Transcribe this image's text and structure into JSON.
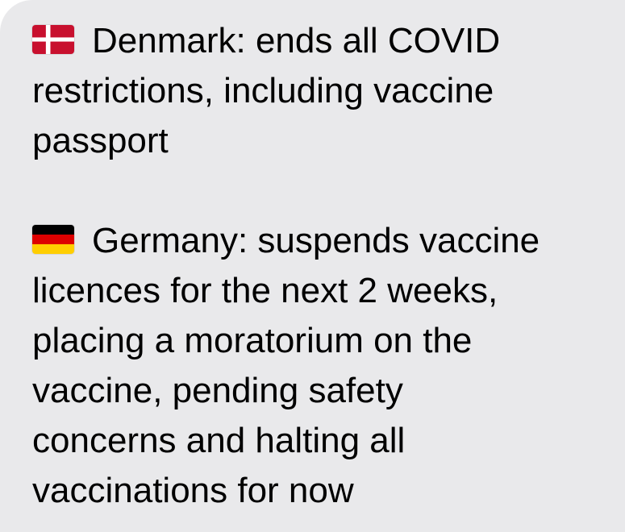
{
  "message": {
    "paragraphs": [
      {
        "flag_icon": "flag-denmark-icon",
        "text": "Denmark: ends all COVID\nrestrictions, including vaccine\npassport"
      },
      {
        "flag_icon": "flag-germany-icon",
        "text": "Germany: suspends vaccine\nlicences for the next 2 weeks,\nplacing a moratorium on the\nvaccine, pending safety\nconcerns and halting all\nvaccinations for now"
      }
    ]
  },
  "colors": {
    "bubble_background": "#e9e9eb",
    "text": "#000000",
    "denmark_red": "#c8102e",
    "germany_black": "#000000",
    "germany_red": "#dd0000",
    "germany_gold": "#ffce00"
  }
}
